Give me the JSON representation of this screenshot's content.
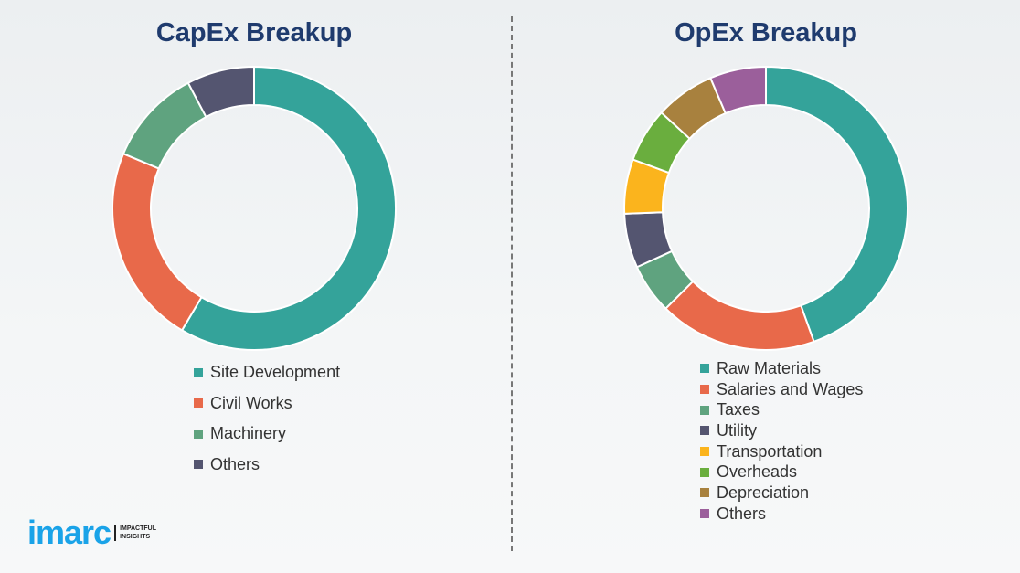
{
  "chart_data": [
    {
      "type": "pie",
      "title": "CapEx Breakup",
      "donut": true,
      "categories": [
        "Site Development",
        "Civil Works",
        "Machinery",
        "Others"
      ],
      "values": [
        58.5,
        22.8,
        11.0,
        7.7
      ],
      "colors": [
        "#34a39a",
        "#e8694a",
        "#5fa37f",
        "#545570"
      ],
      "legend": "bottom"
    },
    {
      "type": "pie",
      "title": "OpEx Breakup",
      "donut": true,
      "categories": [
        "Raw Materials",
        "Salaries and Wages",
        "Taxes",
        "Utility",
        "Transportation",
        "Overheads",
        "Depreciation",
        "Others"
      ],
      "values": [
        44.5,
        18.0,
        5.7,
        6.2,
        6.2,
        6.2,
        6.8,
        6.4
      ],
      "colors": [
        "#34a39a",
        "#e8694a",
        "#5fa37f",
        "#545570",
        "#fbb41d",
        "#6aae3e",
        "#a8813e",
        "#9b5f9b"
      ],
      "legend": "bottom"
    }
  ],
  "logo": {
    "word": "imarc",
    "tagline1": "IMPACTFUL",
    "tagline2": "INSIGHTS"
  }
}
